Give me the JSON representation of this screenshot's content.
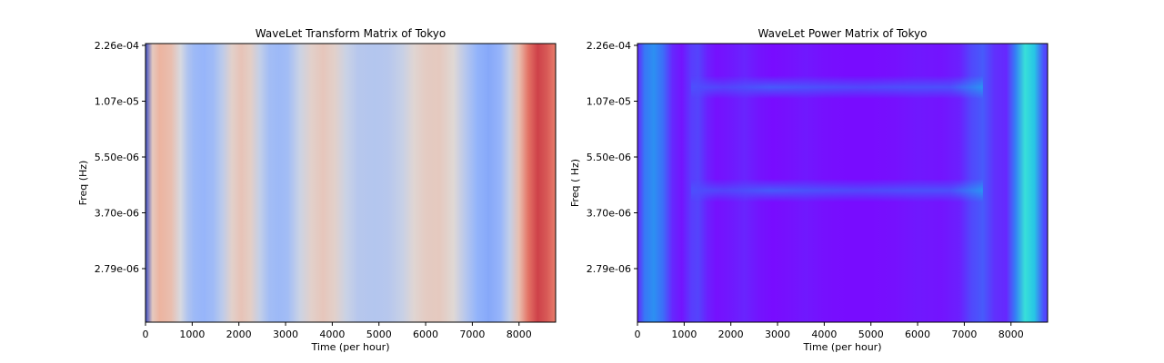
{
  "chart_data": [
    {
      "type": "heatmap",
      "title": "WaveLet Transform Matrix of Tokyo",
      "xlabel": "Time (per hour)",
      "ylabel": "Freq (Hz)",
      "xlim": [
        0,
        8784
      ],
      "x_ticks": [
        0,
        1000,
        2000,
        3000,
        4000,
        5000,
        6000,
        7000,
        8000
      ],
      "y_tick_labels": [
        "2.26e-04",
        "1.07e-05",
        "5.50e-06",
        "3.70e-06",
        "2.79e-06"
      ],
      "colormap": "coolwarm",
      "columns": [
        {
          "x": 0,
          "v": 0.0
        },
        {
          "x": 150,
          "v": 0.58
        },
        {
          "x": 300,
          "v": 0.66
        },
        {
          "x": 550,
          "v": 0.62
        },
        {
          "x": 750,
          "v": 0.48
        },
        {
          "x": 900,
          "v": 0.36
        },
        {
          "x": 1050,
          "v": 0.3
        },
        {
          "x": 1250,
          "v": 0.28
        },
        {
          "x": 1450,
          "v": 0.31
        },
        {
          "x": 1650,
          "v": 0.4
        },
        {
          "x": 1850,
          "v": 0.55
        },
        {
          "x": 2050,
          "v": 0.6
        },
        {
          "x": 2250,
          "v": 0.56
        },
        {
          "x": 2450,
          "v": 0.42
        },
        {
          "x": 2650,
          "v": 0.32
        },
        {
          "x": 2850,
          "v": 0.3
        },
        {
          "x": 3050,
          "v": 0.32
        },
        {
          "x": 3300,
          "v": 0.44
        },
        {
          "x": 3550,
          "v": 0.55
        },
        {
          "x": 3800,
          "v": 0.59
        },
        {
          "x": 4050,
          "v": 0.55
        },
        {
          "x": 4300,
          "v": 0.44
        },
        {
          "x": 4550,
          "v": 0.38
        },
        {
          "x": 4900,
          "v": 0.37
        },
        {
          "x": 5200,
          "v": 0.38
        },
        {
          "x": 5500,
          "v": 0.43
        },
        {
          "x": 5750,
          "v": 0.53
        },
        {
          "x": 6000,
          "v": 0.57
        },
        {
          "x": 6300,
          "v": 0.58
        },
        {
          "x": 6600,
          "v": 0.52
        },
        {
          "x": 6850,
          "v": 0.38
        },
        {
          "x": 7100,
          "v": 0.27
        },
        {
          "x": 7350,
          "v": 0.23
        },
        {
          "x": 7600,
          "v": 0.28
        },
        {
          "x": 7800,
          "v": 0.42
        },
        {
          "x": 8000,
          "v": 0.62
        },
        {
          "x": 8200,
          "v": 0.82
        },
        {
          "x": 8400,
          "v": 0.9
        },
        {
          "x": 8600,
          "v": 0.86
        },
        {
          "x": 8784,
          "v": 0.8
        }
      ]
    },
    {
      "type": "heatmap",
      "title": "WaveLet Power Matrix of Tokyo",
      "xlabel": "Time (per hour)",
      "ylabel": "Freq ( Hz)",
      "xlim": [
        0,
        8784
      ],
      "x_ticks": [
        0,
        1000,
        2000,
        3000,
        4000,
        5000,
        6000,
        7000,
        8000
      ],
      "y_tick_labels": [
        "2.26e-04",
        "1.07e-05",
        "5.50e-06",
        "3.70e-06",
        "2.79e-06"
      ],
      "colormap": "rainbow",
      "columns": [
        {
          "x": 0,
          "v": 0.1
        },
        {
          "x": 150,
          "v": 0.28
        },
        {
          "x": 350,
          "v": 0.33
        },
        {
          "x": 550,
          "v": 0.26
        },
        {
          "x": 750,
          "v": 0.1
        },
        {
          "x": 950,
          "v": 0.05
        },
        {
          "x": 1150,
          "v": 0.15
        },
        {
          "x": 1300,
          "v": 0.17
        },
        {
          "x": 1500,
          "v": 0.08
        },
        {
          "x": 1700,
          "v": 0.04
        },
        {
          "x": 2000,
          "v": 0.06
        },
        {
          "x": 2300,
          "v": 0.09
        },
        {
          "x": 2600,
          "v": 0.05
        },
        {
          "x": 2900,
          "v": 0.03
        },
        {
          "x": 3200,
          "v": 0.04
        },
        {
          "x": 3600,
          "v": 0.06
        },
        {
          "x": 4000,
          "v": 0.04
        },
        {
          "x": 4500,
          "v": 0.03
        },
        {
          "x": 5000,
          "v": 0.03
        },
        {
          "x": 5500,
          "v": 0.04
        },
        {
          "x": 6000,
          "v": 0.06
        },
        {
          "x": 6500,
          "v": 0.05
        },
        {
          "x": 6900,
          "v": 0.08
        },
        {
          "x": 7150,
          "v": 0.18
        },
        {
          "x": 7400,
          "v": 0.22
        },
        {
          "x": 7650,
          "v": 0.12
        },
        {
          "x": 7900,
          "v": 0.1
        },
        {
          "x": 8100,
          "v": 0.3
        },
        {
          "x": 8300,
          "v": 0.52
        },
        {
          "x": 8500,
          "v": 0.45
        },
        {
          "x": 8700,
          "v": 0.2
        },
        {
          "x": 8784,
          "v": 0.15
        }
      ],
      "bands": [
        {
          "tick_index": 0.75,
          "segments": [
            {
              "x": 1150,
              "v": 0.2
            },
            {
              "x": 1850,
              "v": 0.17
            },
            {
              "x": 2850,
              "v": 0.22
            },
            {
              "x": 3800,
              "v": 0.2
            },
            {
              "x": 4800,
              "v": 0.18
            },
            {
              "x": 5800,
              "v": 0.2
            },
            {
              "x": 6700,
              "v": 0.2
            },
            {
              "x": 7400,
              "v": 0.34
            }
          ]
        },
        {
          "tick_index": 2.6,
          "segments": [
            {
              "x": 1150,
              "v": 0.2
            },
            {
              "x": 1850,
              "v": 0.17
            },
            {
              "x": 2850,
              "v": 0.22
            },
            {
              "x": 3800,
              "v": 0.2
            },
            {
              "x": 4800,
              "v": 0.18
            },
            {
              "x": 5800,
              "v": 0.2
            },
            {
              "x": 6700,
              "v": 0.2
            },
            {
              "x": 7400,
              "v": 0.34
            }
          ]
        }
      ]
    }
  ]
}
